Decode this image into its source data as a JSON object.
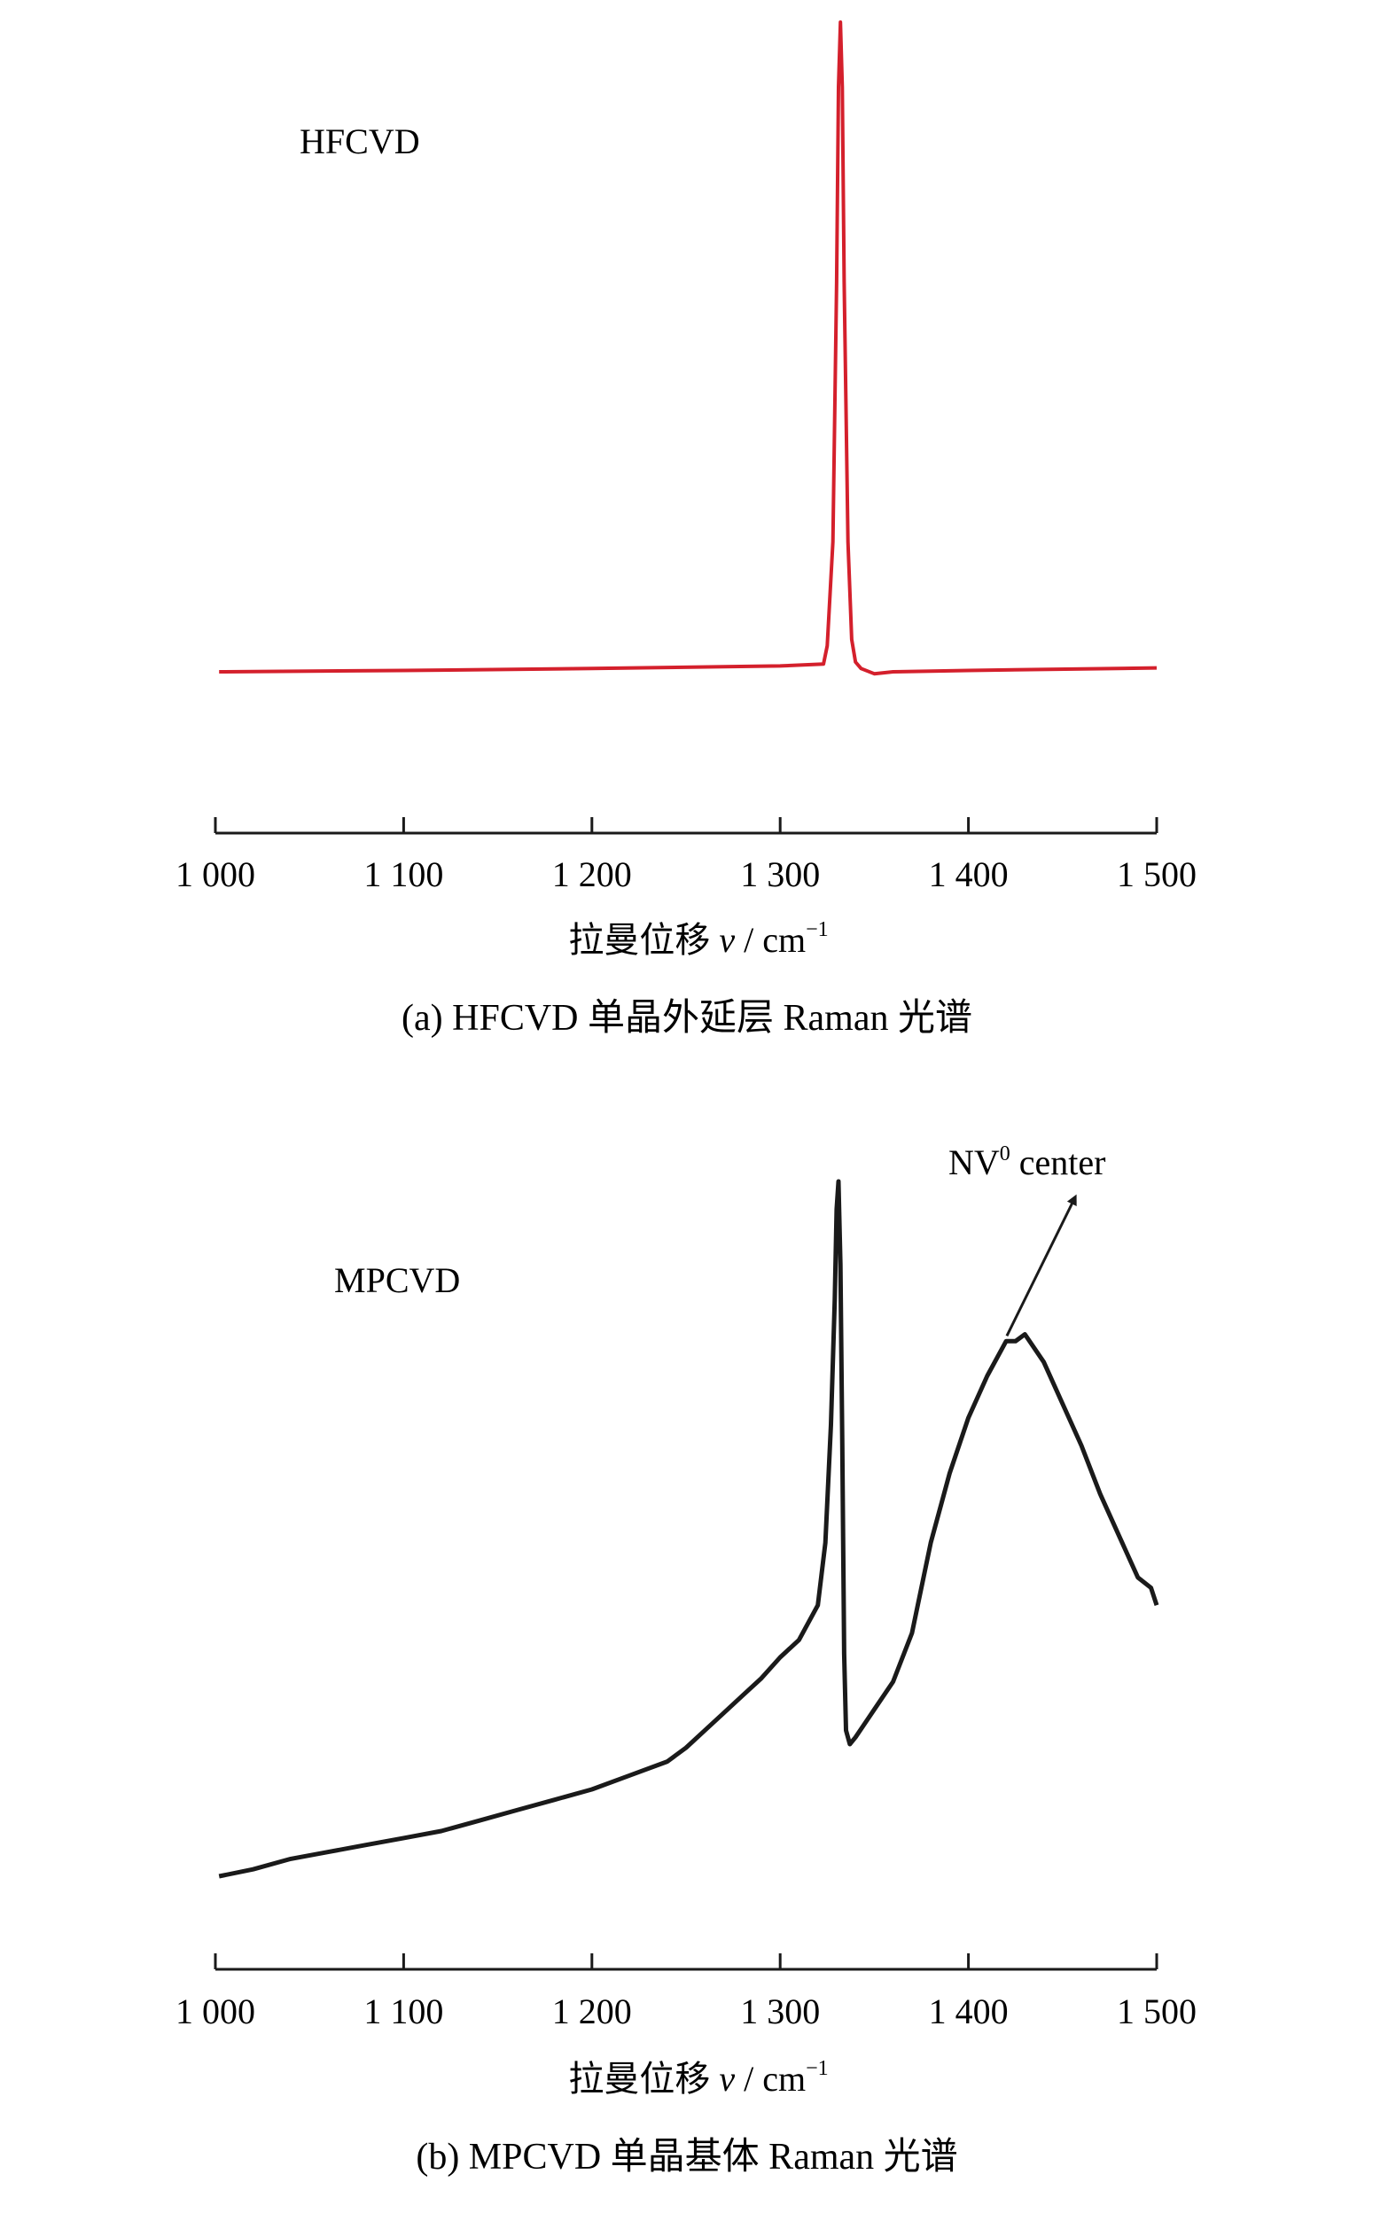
{
  "chart_data": [
    {
      "type": "line",
      "panel_label": "HFCVD",
      "caption": "(a) HFCVD 单晶外延层 Raman 光谱",
      "xlabel_text": "拉曼位移 ",
      "xlabel_var": "v",
      "xlabel_unit": " / cm",
      "xlabel_sup": "−1",
      "xlim": [
        1000,
        1500
      ],
      "xticks": [
        1000,
        1100,
        1200,
        1300,
        1400,
        1500
      ],
      "xtick_labels": [
        "1 000",
        "1 100",
        "1 200",
        "1 300",
        "1 400",
        "1 500"
      ],
      "ylim": [
        0,
        100
      ],
      "grid": false,
      "line_color": "#d4202c",
      "series": [
        {
          "x": [
            1002,
            1100,
            1200,
            1300,
            1323,
            1325,
            1328,
            1330,
            1331,
            1332,
            1333,
            1334,
            1336,
            1338,
            1340,
            1343,
            1350,
            1360,
            1400,
            1500
          ],
          "y": [
            0,
            0.2,
            0.5,
            0.9,
            1.2,
            4,
            20,
            60,
            90,
            100,
            90,
            60,
            20,
            5,
            1.5,
            0.5,
            -0.3,
            0,
            0.2,
            0.6
          ]
        }
      ]
    },
    {
      "type": "line",
      "panel_label": "MPCVD",
      "caption": "(b) MPCVD 单晶基体 Raman 光谱",
      "annotation": {
        "text": "NV",
        "sup": "0",
        "text2": " center",
        "points_to_x": 1427
      },
      "xlabel_text": "拉曼位移 ",
      "xlabel_var": "v",
      "xlabel_unit": " / cm",
      "xlabel_sup": "−1",
      "xlim": [
        1000,
        1500
      ],
      "xticks": [
        1000,
        1100,
        1200,
        1300,
        1400,
        1500
      ],
      "xtick_labels": [
        "1 000",
        "1 100",
        "1 200",
        "1 300",
        "1 400",
        "1 500"
      ],
      "ylim": [
        0,
        100
      ],
      "grid": false,
      "line_color": "#1a1a1a",
      "series": [
        {
          "x": [
            1002,
            1020,
            1040,
            1060,
            1080,
            1100,
            1120,
            1140,
            1160,
            1180,
            1200,
            1220,
            1240,
            1250,
            1260,
            1270,
            1280,
            1290,
            1300,
            1310,
            1320,
            1324,
            1327,
            1329,
            1330,
            1331,
            1332,
            1333,
            1334,
            1335,
            1337,
            1340,
            1345,
            1350,
            1360,
            1370,
            1380,
            1390,
            1400,
            1410,
            1420,
            1425,
            1430,
            1440,
            1450,
            1460,
            1470,
            1480,
            1490,
            1497,
            1500
          ],
          "y": [
            0,
            1,
            2.5,
            3.5,
            4.5,
            5.5,
            6.5,
            8,
            9.5,
            11,
            12.5,
            14.5,
            16.5,
            18.5,
            21,
            23.5,
            26,
            28.5,
            31.5,
            34,
            39,
            48,
            65,
            83,
            96,
            100,
            88,
            62,
            32,
            21,
            19,
            20,
            22,
            24,
            28,
            35,
            48,
            58,
            66,
            72,
            77,
            77,
            78,
            74,
            68,
            62,
            55,
            49,
            43,
            41.5,
            39
          ]
        }
      ]
    }
  ]
}
